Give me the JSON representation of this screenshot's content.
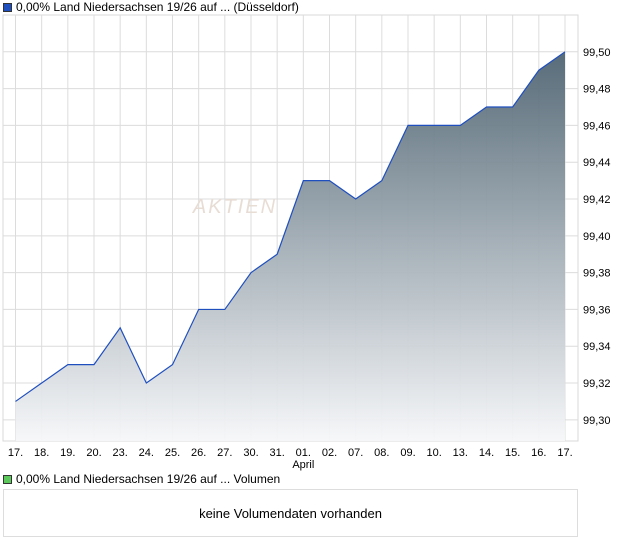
{
  "chart_data": {
    "type": "area",
    "title": "0,00% Land Niedersachsen 19/26 auf ... (Düsseldorf)",
    "categories": [
      "17.",
      "18.",
      "19.",
      "20.",
      "23.",
      "24.",
      "25.",
      "26.",
      "27.",
      "30.",
      "31.",
      "01.",
      "02.",
      "07.",
      "08.",
      "09.",
      "10.",
      "13.",
      "14.",
      "15.",
      "16.",
      "17."
    ],
    "month_label": "April",
    "month_label_index": 11,
    "values": [
      99.31,
      99.32,
      99.33,
      99.33,
      99.35,
      99.32,
      99.33,
      99.36,
      99.36,
      99.38,
      99.39,
      99.43,
      99.43,
      99.42,
      99.43,
      99.46,
      99.46,
      99.46,
      99.47,
      99.47,
      99.49,
      99.5
    ],
    "yticks": [
      "99,30",
      "99,32",
      "99,34",
      "99,36",
      "99,38",
      "99,40",
      "99,42",
      "99,44",
      "99,46",
      "99,48",
      "99,50"
    ],
    "ylim": [
      99.2885,
      99.52
    ],
    "grid": true,
    "line_color": "#1f4fbf",
    "fill_top": "#4f6472",
    "fill_bottom": "#f6f7f9",
    "legend_color": "#1f4fbf",
    "watermark": "AKTIEN"
  },
  "volume": {
    "legend": "0,00% Land Niedersachsen 19/26 auf ... Volumen",
    "legend_color": "#5cc85c",
    "message": "keine Volumendaten vorhanden"
  }
}
